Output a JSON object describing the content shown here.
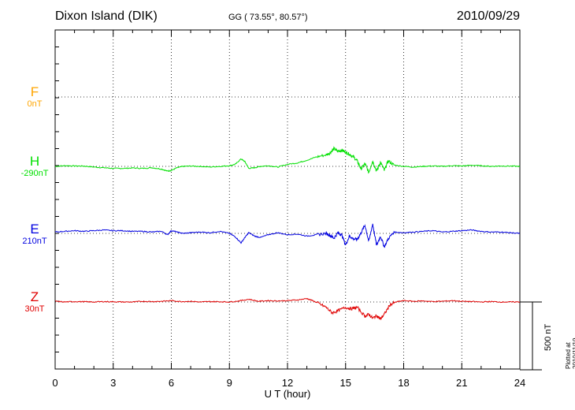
{
  "header": {
    "station": "Dixon Island (DIK)",
    "coords": "GG ( 73.55°,  80.57°)",
    "date": "2010/09/29"
  },
  "footer": {
    "plotted": "Plotted at 2010/11/19 02:07 UT",
    "scale_label": "500 nT"
  },
  "chart_data": {
    "type": "line",
    "xlabel": "U T (hour)",
    "xlim": [
      0,
      24
    ],
    "xticks": [
      0,
      3,
      6,
      9,
      12,
      15,
      18,
      21,
      24
    ],
    "grid": true,
    "scale_bar_nT": 500,
    "series": [
      {
        "name": "F",
        "baseline_label": "0nT",
        "color": "#ffa500",
        "values": []
      },
      {
        "name": "H",
        "baseline_label": "-290nT",
        "color": "#00e000",
        "x": [
          0,
          0.5,
          1,
          1.5,
          2,
          2.5,
          3,
          3.5,
          4,
          4.5,
          5,
          5.5,
          5.8,
          6,
          6.3,
          6.6,
          7,
          7.5,
          8,
          8.5,
          9,
          9.3,
          9.6,
          9.8,
          10,
          10.3,
          10.6,
          11,
          11.5,
          12,
          12.5,
          13,
          13.5,
          14,
          14.2,
          14.4,
          14.6,
          14.8,
          15,
          15.2,
          15.4,
          15.6,
          15.8,
          16,
          16.2,
          16.4,
          16.6,
          16.8,
          17,
          17.2,
          17.5,
          18,
          18.5,
          19,
          19.5,
          20,
          20.5,
          21,
          21.5,
          22,
          22.5,
          23,
          23.5,
          24
        ],
        "values": [
          0,
          5,
          3,
          2,
          -5,
          -10,
          -15,
          -15,
          -12,
          -15,
          -10,
          -20,
          -35,
          -30,
          -10,
          0,
          2,
          0,
          -5,
          0,
          5,
          15,
          55,
          35,
          -15,
          -10,
          0,
          5,
          -5,
          15,
          25,
          45,
          70,
          85,
          100,
          130,
          110,
          120,
          105,
          90,
          70,
          40,
          -20,
          20,
          -45,
          40,
          -35,
          30,
          -30,
          40,
          10,
          0,
          -5,
          0,
          3,
          0,
          5,
          3,
          8,
          5,
          0,
          3,
          2,
          0
        ]
      },
      {
        "name": "E",
        "baseline_label": "210nT",
        "color": "#0000e0",
        "x": [
          0,
          0.5,
          1,
          1.5,
          2,
          2.5,
          3,
          3.5,
          4,
          4.5,
          5,
          5.5,
          5.8,
          6,
          6.3,
          6.6,
          7,
          7.5,
          8,
          8.5,
          9,
          9.3,
          9.6,
          9.8,
          10,
          10.3,
          10.6,
          11,
          11.5,
          12,
          12.5,
          13,
          13.5,
          14,
          14.2,
          14.4,
          14.6,
          14.8,
          15,
          15.2,
          15.4,
          15.6,
          15.8,
          16,
          16.2,
          16.4,
          16.6,
          16.8,
          17,
          17.2,
          17.5,
          18,
          18.5,
          19,
          19.5,
          20,
          20.5,
          21,
          21.5,
          22,
          22.5,
          23,
          23.5,
          24
        ],
        "values": [
          10,
          15,
          20,
          15,
          20,
          25,
          20,
          20,
          15,
          15,
          10,
          15,
          -10,
          20,
          10,
          0,
          5,
          10,
          5,
          15,
          0,
          -25,
          -70,
          -30,
          5,
          -20,
          -30,
          -10,
          5,
          -10,
          -5,
          -20,
          -10,
          0,
          -15,
          -35,
          5,
          -10,
          -85,
          -20,
          -40,
          -45,
          5,
          60,
          -60,
          70,
          -90,
          -20,
          -100,
          -40,
          10,
          5,
          10,
          15,
          20,
          10,
          15,
          20,
          25,
          15,
          10,
          10,
          5,
          0
        ]
      },
      {
        "name": "Z",
        "baseline_label": "30nT",
        "color": "#e00000",
        "x": [
          0,
          0.5,
          1,
          1.5,
          2,
          2.5,
          3,
          3.5,
          4,
          4.5,
          5,
          5.5,
          6,
          6.5,
          7,
          7.5,
          8,
          8.5,
          9,
          9.5,
          10,
          10.5,
          11,
          11.5,
          12,
          12.5,
          13,
          13.3,
          13.6,
          14,
          14.3,
          14.6,
          15,
          15.3,
          15.6,
          16,
          16.2,
          16.4,
          16.6,
          16.8,
          17,
          17.3,
          17.6,
          18,
          18.5,
          19,
          19.5,
          20,
          20.5,
          21,
          21.5,
          22,
          22.5,
          23,
          23.5,
          24
        ],
        "values": [
          5,
          0,
          3,
          2,
          0,
          3,
          2,
          0,
          0,
          5,
          3,
          5,
          10,
          3,
          5,
          0,
          3,
          2,
          0,
          8,
          20,
          5,
          10,
          8,
          10,
          15,
          25,
          10,
          -10,
          -40,
          -80,
          -65,
          -40,
          -50,
          -40,
          -105,
          -90,
          -120,
          -100,
          -125,
          -90,
          -20,
          0,
          10,
          5,
          8,
          3,
          5,
          10,
          5,
          3,
          0,
          3,
          0,
          0,
          0
        ]
      }
    ]
  }
}
